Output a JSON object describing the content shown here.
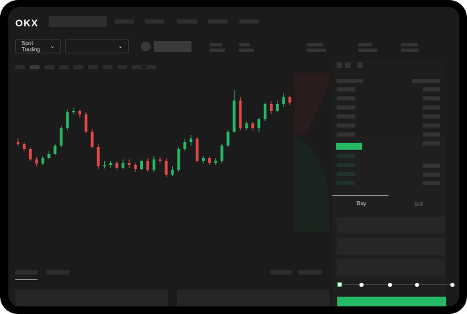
{
  "header": {
    "logo": "OKX"
  },
  "toolbar": {
    "market_select": "Spot Trading",
    "market_chevron": "chevron-down-icon",
    "pair_chevron": "chevron-down-icon"
  },
  "order_form": {
    "tabs": [
      {
        "label": "Buy",
        "active": true
      },
      {
        "label": "Sell",
        "active": false
      }
    ],
    "leverage_slider_percent": 0
  },
  "colors": {
    "up": "#25b865",
    "down": "#e04848",
    "background": "#1b1b1b"
  },
  "chart_data": {
    "type": "candlestick",
    "candles": [
      [
        205,
        208,
        200,
        210
      ],
      [
        208,
        215,
        205,
        218
      ],
      [
        215,
        230,
        212,
        232
      ],
      [
        230,
        236,
        226,
        240
      ],
      [
        236,
        228,
        225,
        238
      ],
      [
        228,
        222,
        218,
        230
      ],
      [
        222,
        210,
        208,
        224
      ],
      [
        210,
        185,
        182,
        212
      ],
      [
        185,
        162,
        158,
        188
      ],
      [
        162,
        160,
        155,
        165
      ],
      [
        160,
        165,
        158,
        170
      ],
      [
        165,
        190,
        162,
        192
      ],
      [
        190,
        212,
        186,
        214
      ],
      [
        212,
        240,
        208,
        244
      ],
      [
        240,
        238,
        232,
        243
      ],
      [
        238,
        235,
        232,
        242
      ],
      [
        235,
        242,
        232,
        246
      ],
      [
        242,
        235,
        230,
        244
      ],
      [
        235,
        238,
        230,
        242
      ],
      [
        238,
        244,
        235,
        248
      ],
      [
        244,
        232,
        230,
        246
      ],
      [
        232,
        245,
        228,
        248
      ],
      [
        245,
        230,
        225,
        248
      ],
      [
        230,
        232,
        226,
        236
      ],
      [
        232,
        252,
        228,
        256
      ],
      [
        252,
        245,
        240,
        254
      ],
      [
        245,
        215,
        212,
        248
      ],
      [
        215,
        205,
        200,
        218
      ],
      [
        205,
        200,
        195,
        210
      ],
      [
        200,
        232,
        198,
        234
      ],
      [
        232,
        228,
        225,
        236
      ],
      [
        228,
        235,
        225,
        238
      ],
      [
        235,
        232,
        228,
        238
      ],
      [
        232,
        210,
        208,
        235
      ],
      [
        210,
        190,
        188,
        212
      ],
      [
        190,
        145,
        130,
        192
      ],
      [
        145,
        185,
        140,
        188
      ],
      [
        185,
        178,
        175,
        188
      ],
      [
        178,
        185,
        176,
        188
      ],
      [
        185,
        172,
        170,
        190
      ],
      [
        172,
        150,
        148,
        175
      ],
      [
        150,
        160,
        146,
        165
      ],
      [
        160,
        150,
        145,
        162
      ],
      [
        150,
        140,
        135,
        154
      ],
      [
        140,
        148,
        138,
        152
      ]
    ]
  }
}
